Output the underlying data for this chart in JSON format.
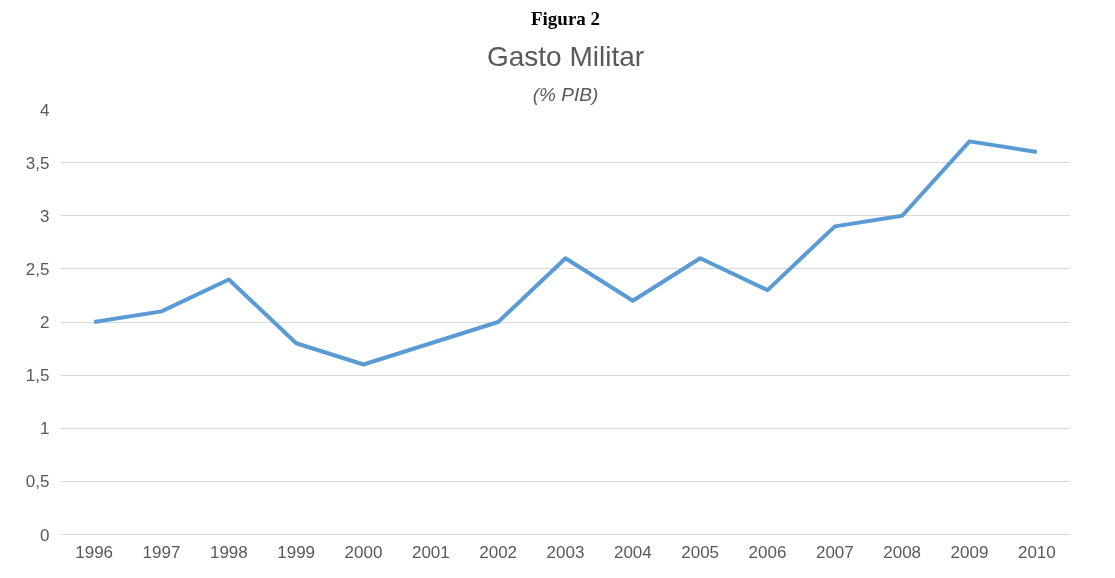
{
  "chart_data": {
    "type": "line",
    "title": "Gasto Militar",
    "subtitle": "(% PIB)",
    "annotations": [
      "Figura 2"
    ],
    "categories": [
      "1996",
      "1997",
      "1998",
      "1999",
      "2000",
      "2001",
      "2002",
      "2003",
      "2004",
      "2005",
      "2006",
      "2007",
      "2008",
      "2009",
      "2010"
    ],
    "series": [
      {
        "color": "#5b9bd5",
        "values": [
          2.0,
          2.1,
          2.4,
          1.8,
          1.6,
          1.8,
          2.0,
          2.6,
          2.2,
          2.6,
          2.3,
          2.9,
          3.0,
          3.7,
          3.6
        ]
      }
    ],
    "ylim": [
      0,
      4
    ],
    "yticks": [
      0,
      {
        "value": 0.5,
        "label": "0,5"
      },
      1,
      {
        "value": 1.5,
        "label": "1,5"
      },
      2,
      {
        "value": 2.5,
        "label": "2,5"
      },
      3,
      {
        "value": 3.5,
        "label": "3,5"
      },
      4
    ],
    "grid": "y",
    "marker": "none",
    "line_style": "solid"
  }
}
